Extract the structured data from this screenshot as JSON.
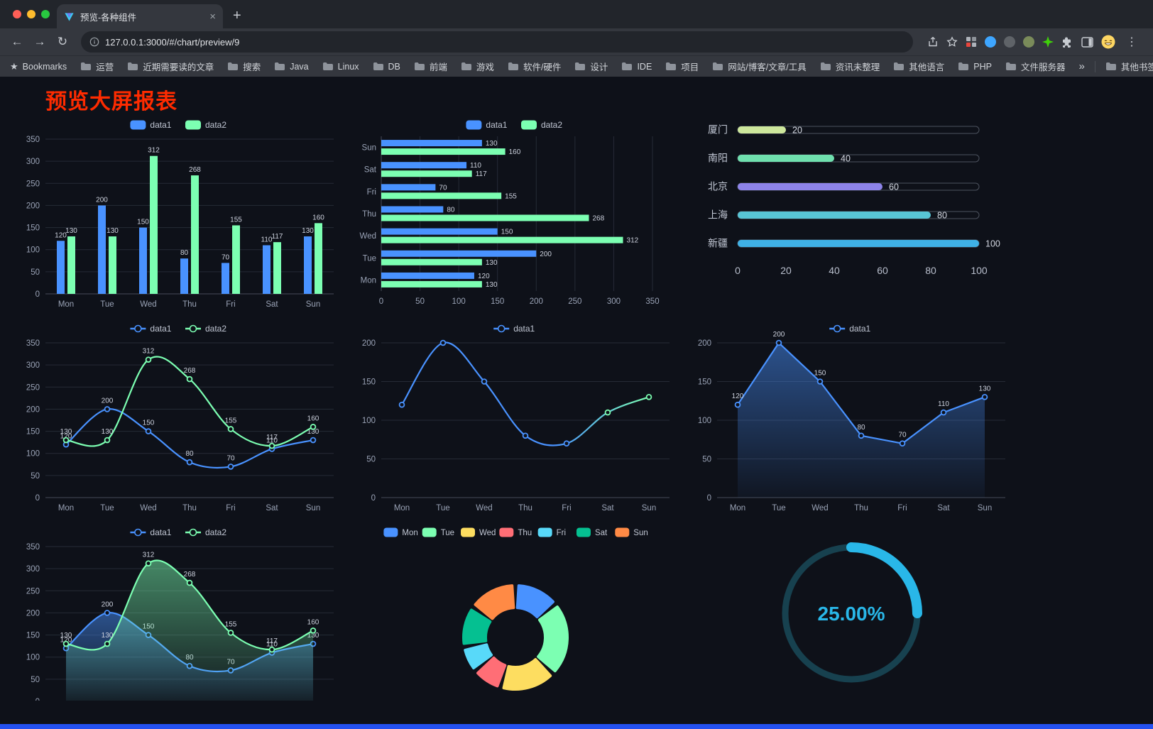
{
  "browser": {
    "tab_title": "预览-各种组件",
    "url": "127.0.0.1:3000/#/chart/preview/9",
    "bookmarks_root_label": "Bookmarks",
    "bookmark_folders": [
      "运营",
      "近期需要读的文章",
      "搜索",
      "Java",
      "Linux",
      "DB",
      "前端",
      "游戏",
      "软件/硬件",
      "设计",
      "IDE",
      "项目",
      "网站/博客/文章/工具",
      "资讯未整理",
      "其他语言",
      "PHP",
      "文件服务器"
    ],
    "other_bookmarks_label": "其他书签"
  },
  "icons": {
    "close": "×",
    "new_tab": "+",
    "back": "←",
    "forward": "→",
    "reload": "↻",
    "menu": "⋮",
    "overflow": "»",
    "bookmark_star": "★"
  },
  "page": {
    "title": "预览大屏报表",
    "title_color": "#fe2b00",
    "background": "#0e1119"
  },
  "chart_data": [
    {
      "name": "grouped-bar",
      "type": "bar",
      "categories": [
        "Mon",
        "Tue",
        "Wed",
        "Thu",
        "Fri",
        "Sat",
        "Sun"
      ],
      "series": [
        {
          "name": "data1",
          "color": "#4992ff",
          "values": [
            120,
            200,
            150,
            80,
            70,
            110,
            130
          ]
        },
        {
          "name": "data2",
          "color": "#7cffb2",
          "values": [
            130,
            130,
            312,
            268,
            155,
            117,
            160
          ]
        }
      ],
      "ylim": [
        0,
        350
      ],
      "ystep": 50,
      "legend": true,
      "show_labels": true
    },
    {
      "name": "horizontal-bar",
      "type": "hbar",
      "categories": [
        "Mon",
        "Tue",
        "Wed",
        "Thu",
        "Fri",
        "Sat",
        "Sun"
      ],
      "series": [
        {
          "name": "data1",
          "color": "#4992ff",
          "values": [
            120,
            200,
            150,
            80,
            70,
            110,
            130
          ]
        },
        {
          "name": "data2",
          "color": "#7cffb2",
          "values": [
            130,
            130,
            312,
            268,
            155,
            117,
            160
          ]
        }
      ],
      "xlim": [
        0,
        350
      ],
      "xstep": 50,
      "legend": true,
      "show_labels": true
    },
    {
      "name": "city-progress",
      "type": "progress",
      "categories": [
        "厦门",
        "南阳",
        "北京",
        "上海",
        "新疆"
      ],
      "values": [
        20,
        40,
        60,
        80,
        100
      ],
      "colors": [
        "#cde79c",
        "#6fe0ae",
        "#8d83e9",
        "#58c5d5",
        "#3fb1e6"
      ],
      "xlim": [
        0,
        100
      ],
      "xstep": 20
    },
    {
      "name": "double-line",
      "type": "line",
      "smooth": true,
      "categories": [
        "Mon",
        "Tue",
        "Wed",
        "Thu",
        "Fri",
        "Sat",
        "Sun"
      ],
      "series": [
        {
          "name": "data1",
          "color": "#4992ff",
          "values": [
            120,
            200,
            150,
            80,
            70,
            110,
            130
          ]
        },
        {
          "name": "data2",
          "color": "#7cffb2",
          "values": [
            130,
            130,
            312,
            268,
            155,
            117,
            160
          ]
        }
      ],
      "ylim": [
        0,
        350
      ],
      "ystep": 50,
      "legend": true,
      "show_labels": true
    },
    {
      "name": "gradient-line",
      "type": "line",
      "smooth": true,
      "categories": [
        "Mon",
        "Tue",
        "Wed",
        "Thu",
        "Fri",
        "Sat",
        "Sun"
      ],
      "series": [
        {
          "name": "data1",
          "color": "#4992ff",
          "color2": "#7cffb2",
          "values": [
            120,
            200,
            150,
            80,
            70,
            110,
            130
          ]
        }
      ],
      "ylim": [
        0,
        200
      ],
      "ystep": 50,
      "legend": true,
      "show_labels": false
    },
    {
      "name": "area-line",
      "type": "line",
      "smooth": false,
      "area": true,
      "categories": [
        "Mon",
        "Tue",
        "Wed",
        "Thu",
        "Fri",
        "Sat",
        "Sun"
      ],
      "series": [
        {
          "name": "data1",
          "color": "#4992ff",
          "values": [
            120,
            200,
            150,
            80,
            70,
            110,
            130
          ]
        }
      ],
      "ylim": [
        0,
        200
      ],
      "ystep": 50,
      "legend": true,
      "show_labels": true
    },
    {
      "name": "double-area-line",
      "type": "line",
      "smooth": true,
      "area": true,
      "categories": [
        "Mon",
        "Tue",
        "Wed",
        "Thu",
        "Fri",
        "Sat",
        "Sun"
      ],
      "series": [
        {
          "name": "data1",
          "color": "#4992ff",
          "values": [
            120,
            200,
            150,
            80,
            70,
            110,
            130
          ]
        },
        {
          "name": "data2",
          "color": "#7cffb2",
          "values": [
            130,
            130,
            312,
            268,
            155,
            117,
            160
          ]
        }
      ],
      "ylim": [
        0,
        350
      ],
      "ystep": 50,
      "legend": true,
      "show_labels": true
    },
    {
      "name": "donut-pie",
      "type": "donut",
      "categories": [
        "Mon",
        "Tue",
        "Wed",
        "Thu",
        "Fri",
        "Sat",
        "Sun"
      ],
      "values": [
        120,
        200,
        150,
        80,
        70,
        110,
        130
      ],
      "colors": [
        "#4992ff",
        "#7cffb2",
        "#fddd60",
        "#ff6e76",
        "#58d9f9",
        "#05c091",
        "#ff8a45"
      ],
      "legend": true
    },
    {
      "name": "gauge-progress",
      "type": "gauge",
      "value": 25,
      "display": "25.00%",
      "color": "#29b7e8",
      "track_color": "#17414f"
    }
  ]
}
